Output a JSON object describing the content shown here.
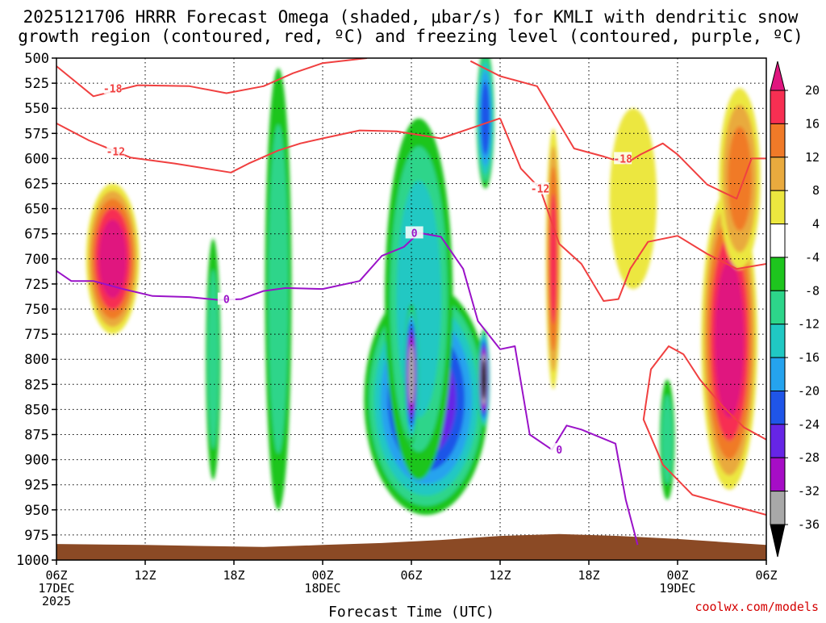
{
  "chart_data": {
    "type": "time-height cross section (filled contour)",
    "title": {
      "line1": "2025121706 HRRR Forecast Omega (shaded, μbar/s) for KMLI with dendritic snow",
      "line2": "growth region (contoured, red, ºC) and freezing level (contoured, purple, ºC)"
    },
    "xlabel": "Forecast Time (UTC)",
    "credit": "coolwx.com/models",
    "x_ticks": [
      {
        "hour": 0,
        "label": "06Z",
        "date": "17DEC",
        "year": "2025"
      },
      {
        "hour": 6,
        "label": "12Z",
        "date": "",
        "year": ""
      },
      {
        "hour": 12,
        "label": "18Z",
        "date": "",
        "year": ""
      },
      {
        "hour": 18,
        "label": "00Z",
        "date": "18DEC",
        "year": ""
      },
      {
        "hour": 24,
        "label": "06Z",
        "date": "",
        "year": ""
      },
      {
        "hour": 30,
        "label": "12Z",
        "date": "",
        "year": ""
      },
      {
        "hour": 36,
        "label": "18Z",
        "date": "",
        "year": ""
      },
      {
        "hour": 42,
        "label": "00Z",
        "date": "19DEC",
        "year": ""
      },
      {
        "hour": 48,
        "label": "06Z",
        "date": "",
        "year": ""
      }
    ],
    "x_range_hours": [
      0,
      48
    ],
    "y_levels_hpa": [
      "500",
      "525",
      "550",
      "575",
      "600",
      "625",
      "650",
      "675",
      "700",
      "725",
      "750",
      "775",
      "800",
      "825",
      "850",
      "875",
      "900",
      "925",
      "950",
      "975",
      "1000"
    ],
    "y_range_hpa": [
      500,
      1000
    ],
    "colorbar": {
      "labels": [
        "20",
        "16",
        "12",
        "8",
        "4",
        "-4",
        "-8",
        "-12",
        "-16",
        "-20",
        "-24",
        "-28",
        "-32",
        "-36"
      ],
      "bins": [
        {
          "lo": 20,
          "hi": null,
          "color": "#e0157f"
        },
        {
          "lo": 16,
          "hi": 20,
          "color": "#f72f52"
        },
        {
          "lo": 12,
          "hi": 16,
          "color": "#f07a28"
        },
        {
          "lo": 8,
          "hi": 12,
          "color": "#e9aa3e"
        },
        {
          "lo": 4,
          "hi": 8,
          "color": "#ece73f"
        },
        {
          "lo": -4,
          "hi": 4,
          "color": "#ffffff"
        },
        {
          "lo": -8,
          "hi": -4,
          "color": "#1ec51e"
        },
        {
          "lo": -12,
          "hi": -8,
          "color": "#2dd58a"
        },
        {
          "lo": -16,
          "hi": -12,
          "color": "#20c8c3"
        },
        {
          "lo": -20,
          "hi": -16,
          "color": "#25a3ee"
        },
        {
          "lo": -24,
          "hi": -20,
          "color": "#1f55e8"
        },
        {
          "lo": -28,
          "hi": -24,
          "color": "#6625e6"
        },
        {
          "lo": -32,
          "hi": -28,
          "color": "#a60dc6"
        },
        {
          "lo": -36,
          "hi": -32,
          "color": "#a8a8a8"
        },
        {
          "lo": null,
          "hi": -36,
          "color": "#000000"
        }
      ]
    },
    "omega_cells": [
      {
        "hour": 3.8,
        "p": 700,
        "dh": 1.8,
        "dp": 150,
        "v": 22
      },
      {
        "hour": 10.6,
        "p": 800,
        "dh": 0.5,
        "dp": 240,
        "v": -9
      },
      {
        "hour": 15.0,
        "p": 730,
        "dh": 0.9,
        "dp": 440,
        "v": -9
      },
      {
        "hour": 25.0,
        "p": 840,
        "dh": 4.2,
        "dp": 230,
        "v": -26
      },
      {
        "hour": 24.5,
        "p": 740,
        "dh": 2.3,
        "dp": 360,
        "v": -14
      },
      {
        "hour": 24.0,
        "p": 815,
        "dh": 0.5,
        "dp": 140,
        "v": -34
      },
      {
        "hour": 28.9,
        "p": 820,
        "dh": 0.4,
        "dp": 100,
        "v": -38
      },
      {
        "hour": 29.0,
        "p": 560,
        "dh": 0.6,
        "dp": 140,
        "v": -22
      },
      {
        "hour": 33.6,
        "p": 700,
        "dh": 0.5,
        "dp": 260,
        "v": 16
      },
      {
        "hour": 45.5,
        "p": 780,
        "dh": 1.9,
        "dp": 300,
        "v": 22
      },
      {
        "hour": 46.2,
        "p": 620,
        "dh": 1.4,
        "dp": 180,
        "v": 12
      },
      {
        "hour": 39.0,
        "p": 640,
        "dh": 1.6,
        "dp": 180,
        "v": 6
      },
      {
        "hour": 41.3,
        "p": 880,
        "dh": 0.5,
        "dp": 120,
        "v": -9
      }
    ],
    "dendritic_growth_contours": [
      {
        "label": "-18",
        "color": "#f04040",
        "points": [
          [
            0,
            508
          ],
          [
            2.5,
            538
          ],
          [
            5.5,
            527
          ],
          [
            9,
            528
          ],
          [
            11.5,
            535
          ],
          [
            14,
            528
          ],
          [
            16,
            515
          ],
          [
            18,
            505
          ],
          [
            21,
            500
          ]
        ],
        "label_at": [
          3.8,
          530
        ]
      },
      {
        "label": "-12",
        "color": "#f04040",
        "points": [
          [
            0,
            565
          ],
          [
            2.2,
            582
          ],
          [
            5,
            599
          ],
          [
            8,
            605
          ],
          [
            11.8,
            614
          ],
          [
            13,
            605
          ],
          [
            15,
            592
          ],
          [
            16.5,
            585
          ],
          [
            18,
            580
          ],
          [
            20.5,
            572
          ],
          [
            23,
            573
          ],
          [
            26,
            580
          ],
          [
            28,
            570
          ],
          [
            30,
            560
          ]
        ],
        "label_at": [
          4.0,
          593
        ]
      },
      {
        "label": "-12",
        "color": "#f04040",
        "points": [
          [
            30,
            560
          ],
          [
            31.4,
            610
          ],
          [
            32.7,
            630
          ],
          [
            34,
            685
          ],
          [
            35.5,
            705
          ],
          [
            37,
            742
          ],
          [
            38,
            740
          ],
          [
            38.8,
            710
          ],
          [
            40,
            683
          ],
          [
            42,
            677
          ],
          [
            44,
            695
          ],
          [
            46,
            710
          ],
          [
            48,
            705
          ]
        ],
        "label_at": [
          32.7,
          630
        ]
      },
      {
        "label": "-18",
        "color": "#f04040",
        "points": [
          [
            28,
            503
          ],
          [
            30,
            518
          ],
          [
            32.5,
            528
          ],
          [
            35,
            590
          ],
          [
            37,
            598
          ],
          [
            38.5,
            605
          ],
          [
            39.5,
            596
          ],
          [
            41,
            585
          ],
          [
            42,
            596
          ],
          [
            44,
            626
          ],
          [
            46,
            640
          ],
          [
            47,
            600
          ],
          [
            48,
            600
          ]
        ],
        "label_at": [
          38.3,
          600
        ]
      },
      {
        "label": "",
        "color": "#f04040",
        "points": [
          [
            48,
            880
          ],
          [
            46.5,
            868
          ],
          [
            45,
            846
          ],
          [
            43.5,
            820
          ],
          [
            42.4,
            795
          ],
          [
            41.4,
            787
          ],
          [
            40.2,
            810
          ],
          [
            39.7,
            860
          ],
          [
            41,
            905
          ],
          [
            43,
            935
          ],
          [
            45.5,
            945
          ],
          [
            48,
            955
          ]
        ],
        "label_at": null
      }
    ],
    "freezing_level_contour": {
      "label": "0",
      "color": "#9a12c8",
      "points": [
        [
          0,
          712
        ],
        [
          1,
          722
        ],
        [
          2.5,
          722
        ],
        [
          4.5,
          730
        ],
        [
          6.5,
          737
        ],
        [
          9,
          738
        ],
        [
          11,
          741
        ],
        [
          12.5,
          740
        ],
        [
          14,
          732
        ],
        [
          15.5,
          729
        ],
        [
          18,
          730
        ],
        [
          20.5,
          722
        ],
        [
          22,
          697
        ],
        [
          23.5,
          688
        ],
        [
          24.5,
          674
        ],
        [
          26,
          678
        ],
        [
          27.5,
          710
        ],
        [
          28.5,
          762
        ],
        [
          30,
          790
        ],
        [
          31,
          787
        ],
        [
          32,
          875
        ],
        [
          33.5,
          890
        ],
        [
          34.5,
          866
        ],
        [
          35.5,
          870
        ],
        [
          37.8,
          884
        ],
        [
          38.5,
          940
        ],
        [
          39.3,
          985
        ]
      ],
      "label_at": [
        [
          11.5,
          740
        ],
        [
          24.2,
          674
        ],
        [
          34.0,
          890
        ]
      ]
    }
  }
}
